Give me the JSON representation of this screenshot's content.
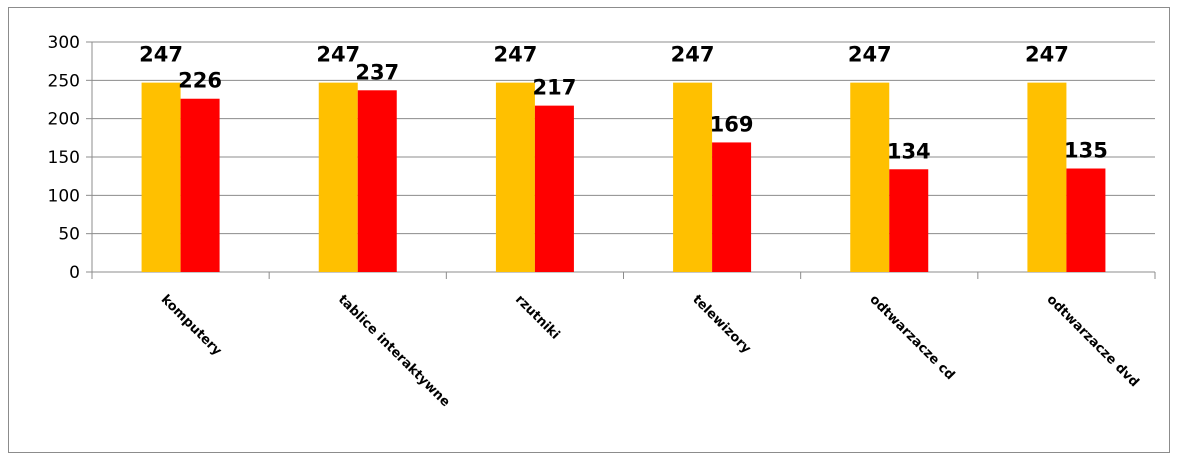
{
  "chart_data": {
    "type": "bar",
    "categories": [
      "komputery",
      "tablice interaktywne",
      "rzutniki",
      "telewizory",
      "odtwarzacze cd",
      "odtwarzacze dvd"
    ],
    "series": [
      {
        "values": [
          247,
          247,
          247,
          247,
          247,
          247
        ],
        "color": "#FFC000"
      },
      {
        "values": [
          226,
          237,
          217,
          169,
          134,
          135
        ],
        "color": "#FF0000"
      }
    ],
    "ylim": [
      0,
      300
    ],
    "yticks": [
      0,
      50,
      100,
      150,
      200,
      250,
      300
    ],
    "grid": true,
    "title": "",
    "xlabel": "",
    "ylabel": ""
  }
}
